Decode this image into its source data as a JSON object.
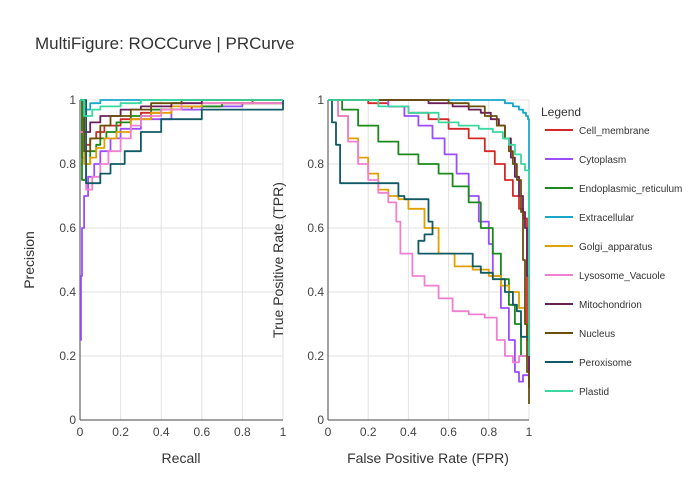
{
  "title": "MultiFigure: ROCCurve | PRCurve",
  "legend": {
    "title": "Legend"
  },
  "classes": [
    {
      "name": "Cell_membrane",
      "color": "#d62728"
    },
    {
      "name": "Cytoplasm",
      "color": "#9b4dff"
    },
    {
      "name": "Endoplasmic_reticulum",
      "color": "#1a8a1a"
    },
    {
      "name": "Extracellular",
      "color": "#17a8c9"
    },
    {
      "name": "Golgi_apparatus",
      "color": "#e0a000"
    },
    {
      "name": "Lysosome_Vacuole",
      "color": "#f07fd0"
    },
    {
      "name": "Mitochondrion",
      "color": "#6a1f5a"
    },
    {
      "name": "Nucleus",
      "color": "#6b4e0a"
    },
    {
      "name": "Peroxisome",
      "color": "#0f5a66"
    },
    {
      "name": "Plastid",
      "color": "#3ad9a0"
    }
  ],
  "chart_data": [
    {
      "type": "line",
      "subplot": "PR",
      "xlabel": "Recall",
      "ylabel": "Precision",
      "xlim": [
        0,
        1
      ],
      "ylim": [
        0,
        1
      ],
      "xticks": [
        "0",
        "0.2",
        "0.4",
        "0.6",
        "0.8",
        "1"
      ],
      "yticks": [
        "0",
        "0.2",
        "0.4",
        "0.6",
        "0.8",
        "1"
      ],
      "grid": true,
      "series": [
        {
          "name": "Cell_membrane",
          "x": [
            0,
            0.01,
            0.03,
            0.05,
            0.08,
            0.12,
            0.2,
            0.3,
            0.4,
            0.55,
            0.7,
            0.85,
            1
          ],
          "y": [
            1,
            0.82,
            0.86,
            0.88,
            0.9,
            0.92,
            0.94,
            0.96,
            0.97,
            0.98,
            0.99,
            1,
            1
          ]
        },
        {
          "name": "Cytoplasm",
          "x": [
            0,
            0.005,
            0.01,
            0.02,
            0.04,
            0.07,
            0.1,
            0.15,
            0.2,
            0.3,
            0.45,
            0.6,
            0.8,
            1
          ],
          "y": [
            0.25,
            0.45,
            0.6,
            0.7,
            0.76,
            0.8,
            0.84,
            0.88,
            0.91,
            0.94,
            0.97,
            0.98,
            0.99,
            1
          ]
        },
        {
          "name": "Endoplasmic_reticulum",
          "x": [
            0,
            0.01,
            0.03,
            0.05,
            0.08,
            0.1,
            0.13,
            0.18,
            0.25,
            0.35,
            0.5,
            0.7,
            1
          ],
          "y": [
            1,
            0.75,
            0.8,
            0.84,
            0.86,
            0.88,
            0.9,
            0.93,
            0.95,
            0.97,
            0.98,
            0.99,
            1
          ]
        },
        {
          "name": "Extracellular",
          "x": [
            0,
            0.02,
            0.05,
            0.1,
            0.2,
            0.4,
            0.6,
            0.8,
            1
          ],
          "y": [
            1,
            0.97,
            0.99,
            1,
            1,
            1,
            1,
            1,
            1
          ]
        },
        {
          "name": "Golgi_apparatus",
          "x": [
            0,
            0.02,
            0.05,
            0.08,
            0.12,
            0.18,
            0.25,
            0.35,
            0.45,
            0.6,
            1
          ],
          "y": [
            1,
            0.8,
            0.82,
            0.85,
            0.88,
            0.9,
            0.94,
            0.96,
            0.98,
            0.99,
            1
          ]
        },
        {
          "name": "Lysosome_Vacuole",
          "x": [
            0,
            0.03,
            0.06,
            0.1,
            0.14,
            0.2,
            0.25,
            0.3,
            0.4,
            0.5,
            1
          ],
          "y": [
            0.9,
            0.72,
            0.76,
            0.8,
            0.84,
            0.88,
            0.92,
            0.95,
            0.97,
            0.99,
            1
          ]
        },
        {
          "name": "Mitochondrion",
          "x": [
            0,
            0.02,
            0.05,
            0.1,
            0.2,
            0.3,
            0.45,
            0.6,
            1
          ],
          "y": [
            1,
            0.9,
            0.93,
            0.95,
            0.97,
            0.98,
            0.99,
            1,
            1
          ]
        },
        {
          "name": "Nucleus",
          "x": [
            0,
            0.02,
            0.05,
            0.1,
            0.15,
            0.25,
            0.35,
            0.5,
            1
          ],
          "y": [
            1,
            0.84,
            0.88,
            0.92,
            0.95,
            0.97,
            0.99,
            1,
            1
          ]
        },
        {
          "name": "Peroxisome",
          "x": [
            0,
            0.03,
            0.1,
            0.15,
            0.22,
            0.3,
            0.4,
            0.6,
            1
          ],
          "y": [
            1,
            0.74,
            0.77,
            0.8,
            0.84,
            0.9,
            0.94,
            0.97,
            1
          ]
        },
        {
          "name": "Plastid",
          "x": [
            0,
            0.02,
            0.06,
            0.1,
            0.2,
            0.3,
            0.45,
            0.6,
            1
          ],
          "y": [
            1,
            0.95,
            0.97,
            0.98,
            0.99,
            1,
            1,
            1,
            1
          ]
        }
      ]
    },
    {
      "type": "line",
      "subplot": "ROC",
      "xlabel": "False Positive Rate (FPR)",
      "ylabel": "True Positive Rate (TPR)",
      "xlim": [
        0,
        1
      ],
      "ylim": [
        0,
        1
      ],
      "xticks": [
        "0",
        "0.2",
        "0.4",
        "0.6",
        "0.8",
        "1"
      ],
      "yticks": [
        "0",
        "0.2",
        "0.4",
        "0.6",
        "0.8",
        "1"
      ],
      "grid": true,
      "series": [
        {
          "name": "Cell_membrane",
          "x": [
            0,
            0.1,
            0.2,
            0.3,
            0.4,
            0.5,
            0.6,
            0.7,
            0.78,
            0.83,
            0.88,
            0.92,
            0.95,
            0.97,
            0.99,
            1
          ],
          "y": [
            1,
            1,
            0.99,
            0.98,
            0.96,
            0.94,
            0.91,
            0.88,
            0.84,
            0.8,
            0.75,
            0.7,
            0.66,
            0.63,
            0.25,
            0.2
          ]
        },
        {
          "name": "Cytoplasm",
          "x": [
            0,
            0.2,
            0.3,
            0.38,
            0.45,
            0.52,
            0.58,
            0.64,
            0.7,
            0.75,
            0.8,
            0.82,
            0.86,
            0.9,
            0.93,
            0.95,
            0.97,
            1
          ],
          "y": [
            1,
            1,
            0.98,
            0.95,
            0.92,
            0.88,
            0.83,
            0.77,
            0.7,
            0.62,
            0.55,
            0.45,
            0.35,
            0.25,
            0.15,
            0.12,
            0.14,
            0.12
          ]
        },
        {
          "name": "Endoplasmic_reticulum",
          "x": [
            0,
            0.07,
            0.15,
            0.25,
            0.35,
            0.45,
            0.55,
            0.62,
            0.7,
            0.76,
            0.82,
            0.86,
            0.9,
            0.93,
            0.96,
            1
          ],
          "y": [
            1,
            0.97,
            0.92,
            0.87,
            0.83,
            0.8,
            0.77,
            0.73,
            0.68,
            0.6,
            0.52,
            0.44,
            0.36,
            0.3,
            0.2,
            0.1
          ]
        },
        {
          "name": "Extracellular",
          "x": [
            0,
            0.3,
            0.6,
            0.8,
            0.88,
            0.92,
            0.95,
            0.97,
            0.985,
            0.995,
            1
          ],
          "y": [
            1,
            1,
            1,
            1,
            0.99,
            0.98,
            0.97,
            0.96,
            0.95,
            0.94,
            0.3
          ]
        },
        {
          "name": "Golgi_apparatus",
          "x": [
            0,
            0.05,
            0.1,
            0.15,
            0.2,
            0.25,
            0.3,
            0.35,
            0.4,
            0.48,
            0.55,
            0.63,
            0.72,
            0.8,
            0.86,
            0.9,
            0.95,
            0.98,
            1
          ],
          "y": [
            1,
            0.95,
            0.88,
            0.82,
            0.77,
            0.72,
            0.7,
            0.69,
            0.66,
            0.6,
            0.52,
            0.48,
            0.47,
            0.45,
            0.42,
            0.4,
            0.35,
            0.3,
            0.25
          ]
        },
        {
          "name": "Lysosome_Vacuole",
          "x": [
            0,
            0.05,
            0.1,
            0.15,
            0.2,
            0.25,
            0.3,
            0.34,
            0.36,
            0.42,
            0.48,
            0.55,
            0.62,
            0.7,
            0.78,
            0.84,
            0.88,
            0.92,
            0.95,
            1
          ],
          "y": [
            1,
            0.95,
            0.87,
            0.8,
            0.75,
            0.71,
            0.68,
            0.62,
            0.52,
            0.45,
            0.42,
            0.38,
            0.34,
            0.33,
            0.32,
            0.25,
            0.2,
            0.18,
            0.2,
            0.15
          ]
        },
        {
          "name": "Mitochondrion",
          "x": [
            0,
            0.3,
            0.5,
            0.62,
            0.7,
            0.76,
            0.81,
            0.85,
            0.88,
            0.91,
            0.93,
            0.95,
            0.97,
            0.98,
            0.99,
            1
          ],
          "y": [
            1,
            1,
            0.99,
            0.98,
            0.97,
            0.96,
            0.94,
            0.92,
            0.88,
            0.82,
            0.76,
            0.7,
            0.65,
            0.6,
            0.45,
            0.1
          ]
        },
        {
          "name": "Nucleus",
          "x": [
            0,
            0.2,
            0.45,
            0.6,
            0.7,
            0.78,
            0.84,
            0.88,
            0.9,
            0.92,
            0.94,
            0.96,
            0.97,
            0.98,
            0.99,
            1
          ],
          "y": [
            1,
            1,
            1,
            0.99,
            0.98,
            0.95,
            0.92,
            0.88,
            0.84,
            0.8,
            0.75,
            0.65,
            0.5,
            0.3,
            0.15,
            0.05
          ]
        },
        {
          "name": "Peroxisome",
          "x": [
            0,
            0.02,
            0.04,
            0.06,
            0.2,
            0.35,
            0.38,
            0.48,
            0.5,
            0.52,
            0.48,
            0.45,
            0.55,
            0.65,
            0.72,
            0.76,
            0.82,
            0.88,
            0.92,
            0.94,
            0.96,
            1
          ],
          "y": [
            1,
            0.93,
            0.86,
            0.74,
            0.74,
            0.7,
            0.69,
            0.69,
            0.62,
            0.58,
            0.56,
            0.52,
            0.52,
            0.52,
            0.48,
            0.46,
            0.44,
            0.4,
            0.36,
            0.34,
            0.26,
            0.24
          ]
        },
        {
          "name": "Plastid",
          "x": [
            0,
            0.1,
            0.25,
            0.4,
            0.55,
            0.65,
            0.75,
            0.82,
            0.87,
            0.9,
            0.93,
            0.96,
            0.98,
            1
          ],
          "y": [
            1,
            1,
            0.98,
            0.96,
            0.93,
            0.92,
            0.91,
            0.9,
            0.88,
            0.86,
            0.83,
            0.8,
            0.78,
            0.2
          ]
        }
      ]
    }
  ]
}
